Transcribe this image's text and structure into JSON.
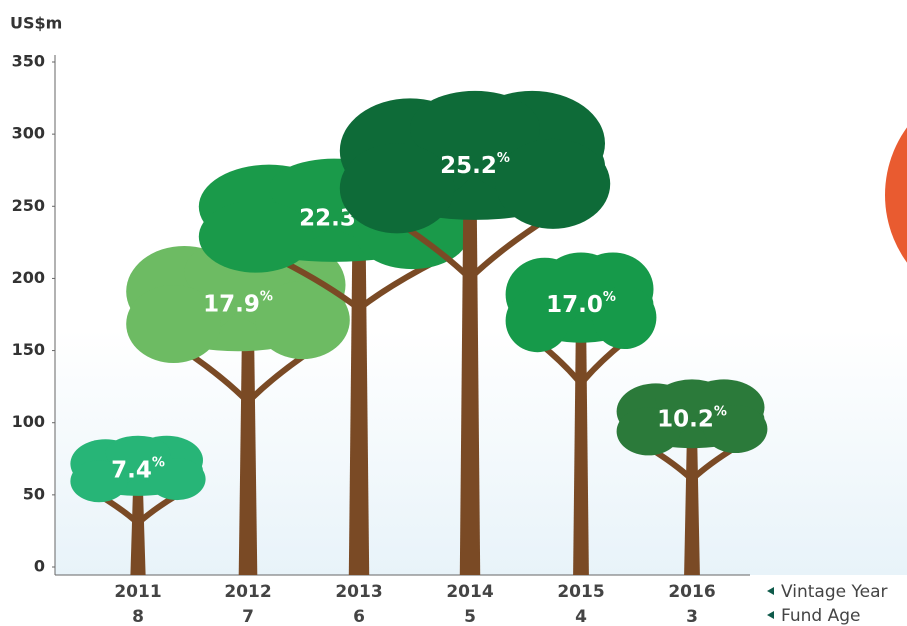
{
  "chart_data": {
    "type": "tree",
    "y_label": "US$m",
    "categories": [
      "2011",
      "2012",
      "2013",
      "2014",
      "2015",
      "2016"
    ],
    "fund_age": [
      "8",
      "7",
      "6",
      "5",
      "4",
      "3"
    ],
    "category_legend": "Vintage Year",
    "age_legend": "Fund Age",
    "values": [
      91,
      227,
      283,
      330,
      218,
      130
    ],
    "returns": [
      7.4,
      17.9,
      22.3,
      25.2,
      17.0,
      10.2
    ],
    "return_labels": [
      "7.4",
      "17.9",
      "22.3",
      "25.2",
      "17.0",
      "10.2"
    ],
    "return_unit": "%",
    "colors": [
      "#27b577",
      "#6dbb63",
      "#1a9a4a",
      "#0e6b38",
      "#169a4a",
      "#2b7a3a"
    ],
    "trunk_color": "#7a4a25",
    "ylim": [
      0,
      350
    ],
    "yticks": [
      0,
      50,
      100,
      150,
      200,
      250,
      300,
      350
    ]
  }
}
